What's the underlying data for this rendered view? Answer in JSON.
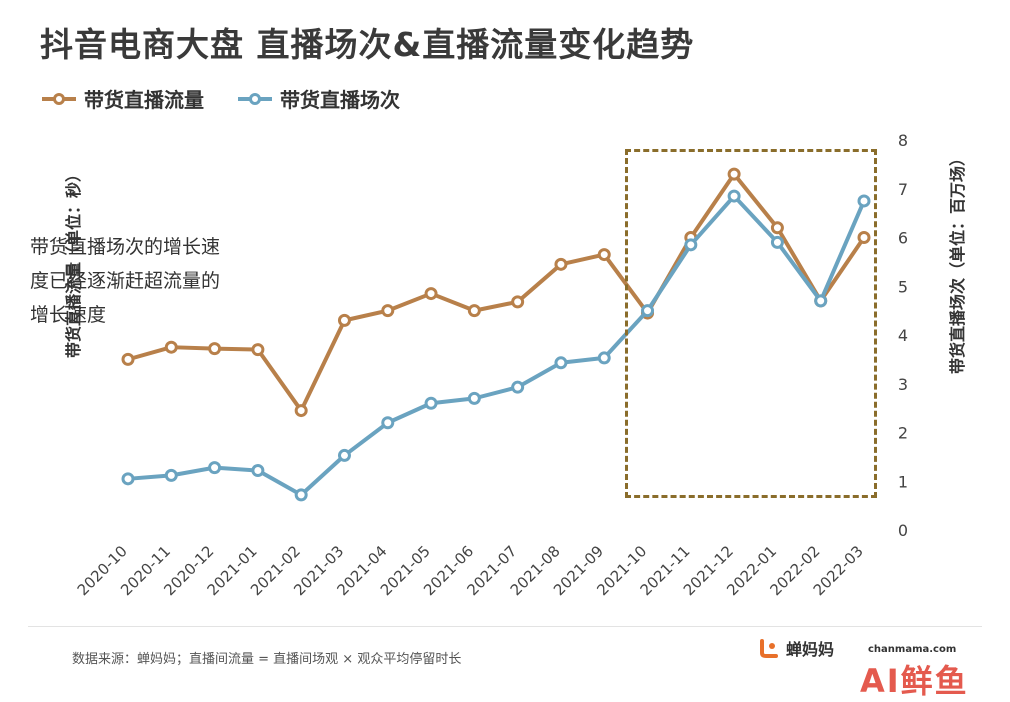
{
  "header": {
    "title": "抖音电商大盘 直播场次&直播流量变化趋势"
  },
  "legend": {
    "items": [
      {
        "label": "带货直播流量",
        "color": "#b8804a"
      },
      {
        "label": "带货直播场次",
        "color": "#6aa3c0"
      }
    ]
  },
  "axes": {
    "left_label": "带货直播流量（单位：秒）",
    "right_label": "带货直播场次（单位：百万场）"
  },
  "annotation": {
    "text": "带货直播场次的增长速度已经逐渐赶超流量的增长速度"
  },
  "footer": {
    "note": "数据来源：蝉妈妈；直播间流量 = 直播间场观 × 观众平均停留时长",
    "brand": "蝉妈妈",
    "brand_url": "chanmama.com",
    "brand_mark": "AI鲜鱼"
  },
  "chart_data": {
    "type": "line",
    "categories": [
      "2020-10",
      "2020-11",
      "2020-12",
      "2021-01",
      "2021-02",
      "2021-03",
      "2021-04",
      "2021-05",
      "2021-06",
      "2021-07",
      "2021-08",
      "2021-09",
      "2021-10",
      "2021-11",
      "2021-12",
      "2022-01",
      "2022-02",
      "2022-03"
    ],
    "series": [
      {
        "name": "带货直播流量",
        "axis": "left",
        "color": "#b8804a",
        "values": [
          3.5,
          3.75,
          3.72,
          3.7,
          2.45,
          4.3,
          4.5,
          4.85,
          4.5,
          4.68,
          5.45,
          5.65,
          4.45,
          6.0,
          7.3,
          6.2,
          4.7,
          6.0
        ]
      },
      {
        "name": "带货直播场次",
        "axis": "right",
        "color": "#6aa3c0",
        "values": [
          1.05,
          1.12,
          1.28,
          1.22,
          0.72,
          1.53,
          2.2,
          2.6,
          2.7,
          2.93,
          3.43,
          3.53,
          4.5,
          5.85,
          6.85,
          5.9,
          4.7,
          6.75
        ]
      }
    ],
    "y_right": {
      "ylim": [
        0,
        8
      ],
      "ticks": [
        0,
        1,
        2,
        3,
        4,
        5,
        6,
        7,
        8
      ]
    },
    "y_left": {
      "ylim": [
        0,
        8
      ],
      "tick_labels_shown": false
    },
    "grid": false,
    "legend_position": "top-left"
  }
}
